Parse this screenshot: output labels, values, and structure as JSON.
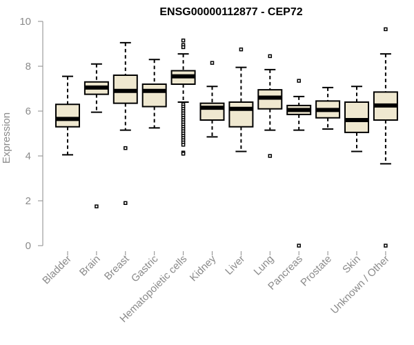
{
  "chart_data": {
    "type": "box",
    "title": "ENSG00000112877 - CEP72",
    "xlabel": "",
    "ylabel": "Expression",
    "ylim": [
      0,
      10
    ],
    "yticks": [
      0,
      2,
      4,
      6,
      8,
      10
    ],
    "grid": false,
    "colors": {
      "box_fill": "#efe8d0",
      "stroke": "#000000",
      "axis": "#8a8a8a"
    },
    "categories": [
      "Bladder",
      "Brain",
      "Breast",
      "Gastric",
      "Hematopoietic cells",
      "Kidney",
      "Liver",
      "Lung",
      "Pancreas",
      "Prostate",
      "Skin",
      "Unknown / Other"
    ],
    "boxes": [
      {
        "q1": 5.3,
        "median": 5.65,
        "q3": 6.3,
        "whisker_low": 4.05,
        "whisker_high": 7.55,
        "outliers": []
      },
      {
        "q1": 6.75,
        "median": 7.05,
        "q3": 7.3,
        "whisker_low": 5.95,
        "whisker_high": 8.1,
        "outliers": [
          1.75
        ]
      },
      {
        "q1": 6.35,
        "median": 6.9,
        "q3": 7.6,
        "whisker_low": 5.15,
        "whisker_high": 9.05,
        "outliers": [
          4.35,
          1.9
        ]
      },
      {
        "q1": 6.2,
        "median": 6.9,
        "q3": 7.2,
        "whisker_low": 5.25,
        "whisker_high": 8.3,
        "outliers": []
      },
      {
        "q1": 7.2,
        "median": 7.55,
        "q3": 7.8,
        "whisker_low": 6.4,
        "whisker_high": 8.55,
        "outliers": [
          9.15,
          8.95,
          8.85,
          6.3,
          6.2,
          6.1,
          6.0,
          5.9,
          5.8,
          5.7,
          5.6,
          5.5,
          5.4,
          5.3,
          5.2,
          5.1,
          5.0,
          4.9,
          4.8,
          4.7,
          4.6,
          4.5,
          4.15,
          4.1
        ]
      },
      {
        "q1": 5.6,
        "median": 6.15,
        "q3": 6.35,
        "whisker_low": 4.85,
        "whisker_high": 7.1,
        "outliers": [
          8.15
        ]
      },
      {
        "q1": 5.3,
        "median": 6.1,
        "q3": 6.4,
        "whisker_low": 4.2,
        "whisker_high": 7.95,
        "outliers": [
          8.75
        ]
      },
      {
        "q1": 6.1,
        "median": 6.6,
        "q3": 6.95,
        "whisker_low": 5.15,
        "whisker_high": 7.85,
        "outliers": [
          8.45,
          4.0
        ]
      },
      {
        "q1": 5.85,
        "median": 6.05,
        "q3": 6.25,
        "whisker_low": 5.15,
        "whisker_high": 6.65,
        "outliers": [
          7.35,
          0.0
        ]
      },
      {
        "q1": 5.7,
        "median": 6.05,
        "q3": 6.45,
        "whisker_low": 5.2,
        "whisker_high": 7.05,
        "outliers": []
      },
      {
        "q1": 5.05,
        "median": 5.6,
        "q3": 6.4,
        "whisker_low": 4.2,
        "whisker_high": 7.1,
        "outliers": []
      },
      {
        "q1": 5.6,
        "median": 6.25,
        "q3": 6.85,
        "whisker_low": 3.65,
        "whisker_high": 8.55,
        "outliers": [
          9.65,
          0.0
        ]
      }
    ]
  }
}
